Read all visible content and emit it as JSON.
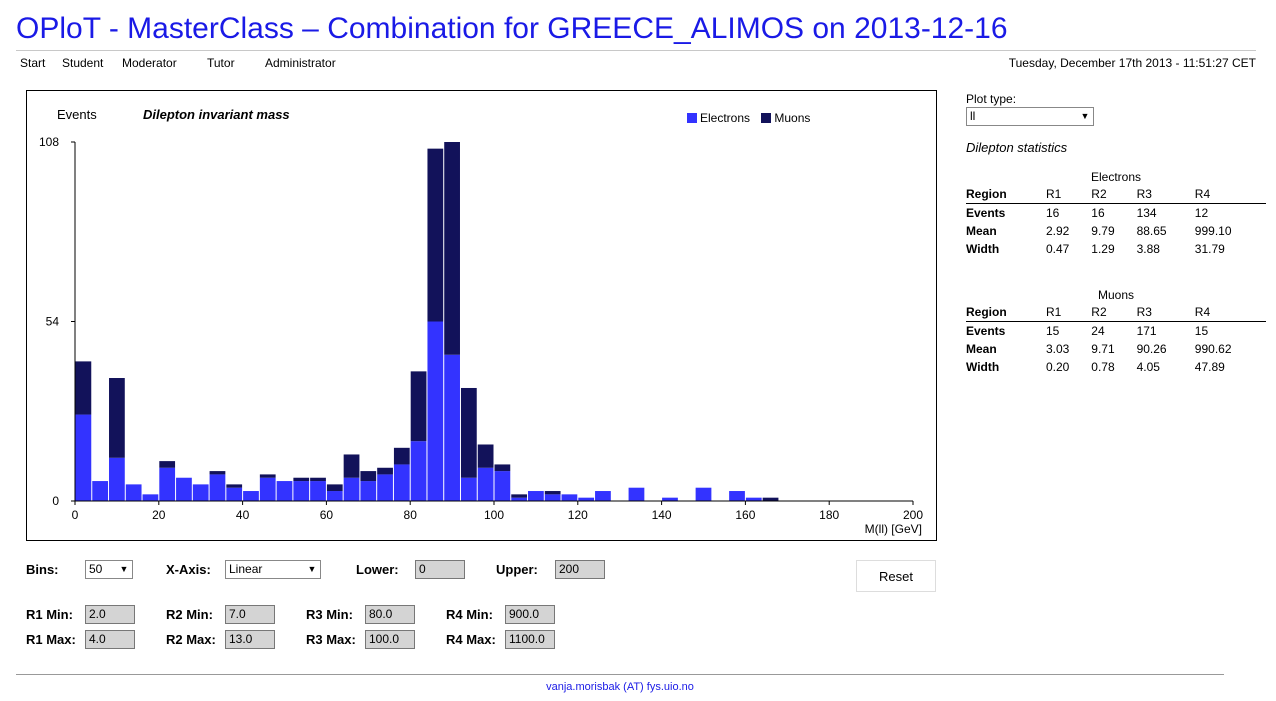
{
  "page": {
    "title": "OPloT - MasterClass – Combination for GREECE_ALIMOS on 2013-12-16",
    "datetime": "Tuesday, December 17th 2013 - 11:51:27 CET",
    "footer": "vanja.morisbak (AT) fys.uio.no"
  },
  "nav": {
    "items": [
      {
        "label": "Start"
      },
      {
        "label": "Student"
      },
      {
        "label": "Moderator"
      },
      {
        "label": "Tutor"
      },
      {
        "label": "Administrator"
      }
    ]
  },
  "plot": {
    "ylabel": "Events",
    "title": "Dilepton invariant mass",
    "xlabel": "M(ll) [GeV]",
    "legend": [
      {
        "name": "Electrons",
        "color": "#3333ff"
      },
      {
        "name": "Muons",
        "color": "#12125a"
      }
    ]
  },
  "chart_data": {
    "type": "bar",
    "stacked": true,
    "title": "Dilepton invariant mass",
    "xlabel": "M(ll) [GeV]",
    "ylabel": "Events",
    "bin_width": 4,
    "xlim": [
      0,
      200
    ],
    "ylim": [
      0,
      108
    ],
    "xticks": [
      0,
      20,
      40,
      60,
      80,
      100,
      120,
      140,
      160,
      180,
      200
    ],
    "yticks": [
      0,
      54,
      108
    ],
    "x": [
      0,
      4,
      8,
      12,
      16,
      20,
      24,
      28,
      32,
      36,
      40,
      44,
      48,
      52,
      56,
      60,
      64,
      68,
      72,
      76,
      80,
      84,
      88,
      92,
      96,
      100,
      104,
      108,
      112,
      116,
      120,
      124,
      128,
      132,
      136,
      140,
      144,
      148,
      152,
      156,
      160,
      164,
      168,
      172,
      176,
      180,
      184,
      188,
      192,
      196
    ],
    "series": [
      {
        "name": "Electrons",
        "color": "#3333ff",
        "values": [
          26,
          6,
          13,
          5,
          2,
          10,
          7,
          5,
          8,
          4,
          3,
          7,
          6,
          6,
          6,
          3,
          7,
          6,
          8,
          11,
          18,
          54,
          44,
          7,
          10,
          9,
          1,
          3,
          2,
          2,
          1,
          3,
          0,
          4,
          0,
          1,
          0,
          4,
          0,
          3,
          1,
          0,
          0,
          0,
          0,
          0,
          0,
          0,
          0,
          0
        ]
      },
      {
        "name": "Muons",
        "color": "#12125a",
        "values": [
          16,
          0,
          24,
          0,
          0,
          2,
          0,
          0,
          1,
          1,
          0,
          1,
          0,
          1,
          1,
          2,
          7,
          3,
          2,
          5,
          21,
          52,
          64,
          27,
          7,
          2,
          1,
          0,
          1,
          0,
          0,
          0,
          0,
          0,
          0,
          0,
          0,
          0,
          0,
          0,
          0,
          1,
          0,
          0,
          0,
          0,
          0,
          0,
          0,
          0
        ]
      }
    ]
  },
  "side": {
    "plot_type_label": "Plot type:",
    "plot_type_value": "ll",
    "stats_title": "Dilepton statistics",
    "region_label": "Region",
    "regions": [
      "R1",
      "R2",
      "R3",
      "R4"
    ],
    "electrons": {
      "label": "Electrons",
      "rows": [
        {
          "label": "Events",
          "values": [
            "16",
            "16",
            "134",
            "12"
          ]
        },
        {
          "label": "Mean",
          "values": [
            "2.92",
            "9.79",
            "88.65",
            "999.10"
          ]
        },
        {
          "label": "Width",
          "values": [
            "0.47",
            "1.29",
            "3.88",
            "31.79"
          ]
        }
      ]
    },
    "muons": {
      "label": "Muons",
      "rows": [
        {
          "label": "Events",
          "values": [
            "15",
            "24",
            "171",
            "15"
          ]
        },
        {
          "label": "Mean",
          "values": [
            "3.03",
            "9.71",
            "90.26",
            "990.62"
          ]
        },
        {
          "label": "Width",
          "values": [
            "0.20",
            "0.78",
            "4.05",
            "47.89"
          ]
        }
      ]
    }
  },
  "controls": {
    "bins_label": "Bins:",
    "bins_value": "50",
    "xaxis_label": "X-Axis:",
    "xaxis_value": "Linear",
    "lower_label": "Lower:",
    "lower_value": "0",
    "upper_label": "Upper:",
    "upper_value": "200",
    "reset_label": "Reset",
    "r1min_label": "R1 Min:",
    "r1min": "2.0",
    "r1max_label": "R1 Max:",
    "r1max": "4.0",
    "r2min_label": "R2 Min:",
    "r2min": "7.0",
    "r2max_label": "R2 Max:",
    "r2max": "13.0",
    "r3min_label": "R3 Min:",
    "r3min": "80.0",
    "r3max_label": "R3 Max:",
    "r3max": "100.0",
    "r4min_label": "R4 Min:",
    "r4min": "900.0",
    "r4max_label": "R4 Max:",
    "r4max": "1100.0"
  }
}
